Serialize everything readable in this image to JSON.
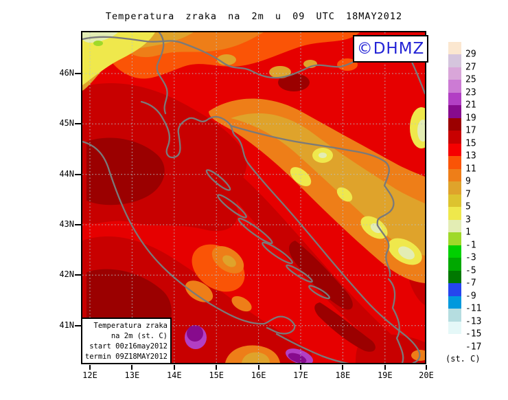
{
  "title": "Temperatura zraka na 2m u 09 UTC 18MAY2012",
  "logo": {
    "text": "©DHMZ"
  },
  "legend_box": {
    "lines": [
      "Temperatura zraka",
      "na 2m (st. C)",
      "start 00z16may2012",
      "termin 09Z18MAY2012"
    ]
  },
  "axes": {
    "lat_labels": [
      "46N",
      "45N",
      "44N",
      "43N",
      "42N",
      "41N"
    ],
    "lon_labels": [
      "12E",
      "13E",
      "14E",
      "15E",
      "16E",
      "17E",
      "18E",
      "19E",
      "20E"
    ]
  },
  "colorbar": {
    "unit": "(st. C)",
    "entries": [
      {
        "color": "#FBE7D0",
        "label": "29"
      },
      {
        "color": "#D5C5DD",
        "label": "27"
      },
      {
        "color": "#D9A6D9",
        "label": "25"
      },
      {
        "color": "#CC7BD4",
        "label": "23"
      },
      {
        "color": "#B23FC4",
        "label": "21"
      },
      {
        "color": "#870B8D",
        "label": "19"
      },
      {
        "color": "#9B0000",
        "label": "17"
      },
      {
        "color": "#C80000",
        "label": "15"
      },
      {
        "color": "#F60000",
        "label": "13"
      },
      {
        "color": "#FA5406",
        "label": "11"
      },
      {
        "color": "#EE7E18",
        "label": "9"
      },
      {
        "color": "#DFA32B",
        "label": "7"
      },
      {
        "color": "#DDC32F",
        "label": "5"
      },
      {
        "color": "#EFE84C",
        "label": "3"
      },
      {
        "color": "#E3EDB4",
        "label": "1"
      },
      {
        "color": "#9FD929",
        "label": "-1"
      },
      {
        "color": "#00D000",
        "label": "-3"
      },
      {
        "color": "#00A800",
        "label": "-5"
      },
      {
        "color": "#007800",
        "label": "-7"
      },
      {
        "color": "#2545EE",
        "label": "-9"
      },
      {
        "color": "#0099DD",
        "label": "-11"
      },
      {
        "color": "#B5DDE0",
        "label": "-13"
      },
      {
        "color": "#E5F8F8",
        "label": "-15"
      },
      {
        "color": "#FFFFFF",
        "label": "-17"
      }
    ]
  },
  "map_colors": {
    "red": "#E60000",
    "dark_red": "#C80000",
    "maroon": "#9B0000",
    "orange_red": "#FA5406",
    "orange": "#EE7E18",
    "ochre": "#DFA32B",
    "yellow": "#EFE84C",
    "pale_yellow": "#E3EDB4",
    "yellow_green": "#9FD929",
    "purple": "#870B8D",
    "light_purple": "#B23FC4",
    "coast_gray": "#7A7A7A",
    "grid_gray": "#B6C4C9"
  }
}
